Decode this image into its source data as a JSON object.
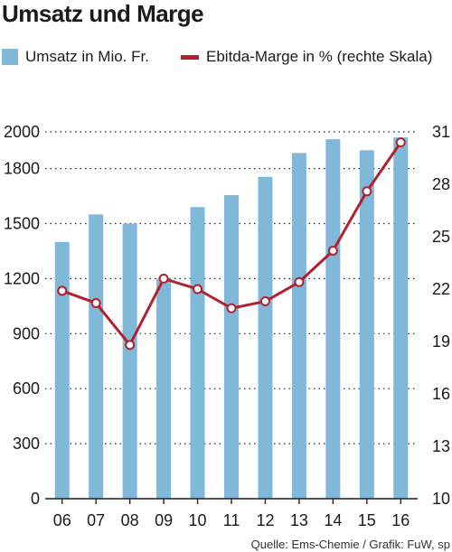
{
  "colors": {
    "bar": "#7fb8d9",
    "line": "#b5202e",
    "grid": "#222222"
  },
  "chart_data": {
    "type": "bar",
    "title": "Umsatz und Marge",
    "categories": [
      "06",
      "07",
      "08",
      "09",
      "10",
      "11",
      "12",
      "13",
      "14",
      "15",
      "16"
    ],
    "series": [
      {
        "name": "Umsatz in Mio. Fr.",
        "type": "bar",
        "axis": "left",
        "values": [
          1400,
          1550,
          1500,
          1200,
          1590,
          1655,
          1755,
          1885,
          1960,
          1900,
          1970
        ]
      },
      {
        "name": "Ebitda-Marge in % (rechte Skala)",
        "type": "line",
        "axis": "right",
        "values": [
          21.9,
          21.2,
          18.8,
          22.6,
          22.0,
          20.9,
          21.3,
          22.4,
          24.2,
          27.6,
          30.4
        ]
      }
    ],
    "ylim": [
      0,
      2000
    ],
    "y_ticks": [
      "0",
      "300",
      "600",
      "900",
      "1200",
      "1500",
      "1800",
      "2000"
    ],
    "y2lim": [
      10,
      31
    ],
    "y2_ticks": [
      "10",
      "13",
      "16",
      "19",
      "22",
      "25",
      "28",
      "31"
    ],
    "grid": true,
    "legend_position": "top",
    "source": "Quelle: Ems-Chemie / Grafik: FuW, sp"
  }
}
